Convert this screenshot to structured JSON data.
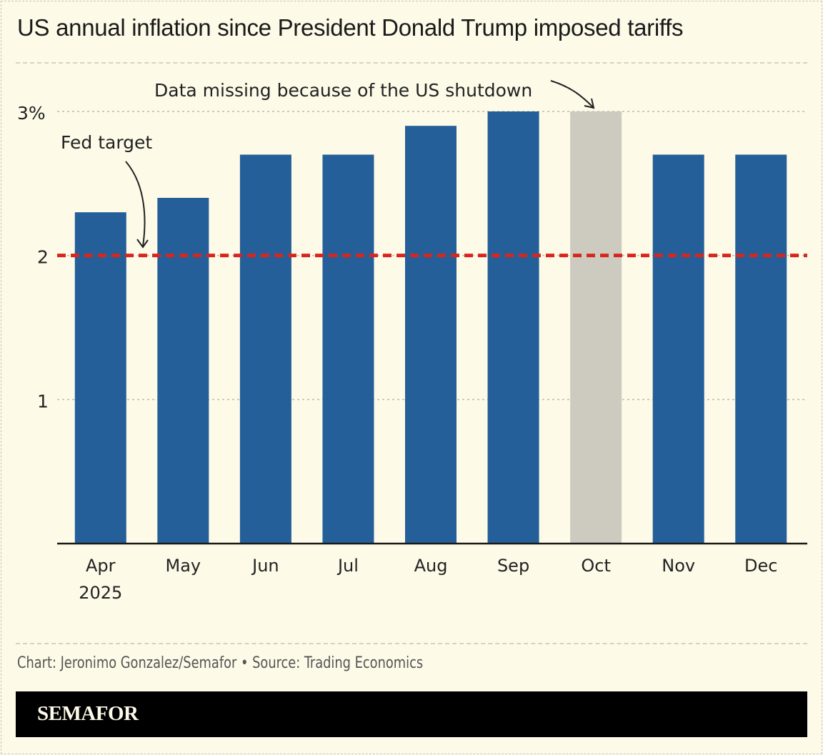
{
  "chart_data": {
    "type": "bar",
    "title": "US annual inflation since President Donald Trump imposed tariffs",
    "categories": [
      "Apr",
      "May",
      "Jun",
      "Jul",
      "Aug",
      "Sep",
      "Oct",
      "Nov",
      "Dec"
    ],
    "category_sublabels": [
      "2025",
      "",
      "",
      "",
      "",
      "",
      "",
      "",
      ""
    ],
    "values": [
      2.3,
      2.4,
      2.7,
      2.7,
      2.9,
      3.0,
      null,
      2.7,
      2.7
    ],
    "missing_placeholder": {
      "category": "Oct",
      "value": 3.0
    },
    "yticks": [
      1,
      2,
      3
    ],
    "ytick_labels": [
      "1",
      "2",
      "3%"
    ],
    "ylim": [
      0,
      3.0
    ],
    "grid": true,
    "reference_line": {
      "value": 2,
      "label": "Fed target",
      "color": "#d7261e",
      "style": "dashed"
    },
    "annotations": [
      {
        "text": "Data missing because of the US shutdown",
        "target": "Oct"
      }
    ],
    "colors": {
      "bar": "#245f99",
      "missing": "#cdcbbf",
      "background": "#fdfae8"
    }
  },
  "footer": {
    "source": "Chart: Jeronimo Gonzalez/Semafor • Source: Trading Economics",
    "brand": "SEMAFOR"
  }
}
